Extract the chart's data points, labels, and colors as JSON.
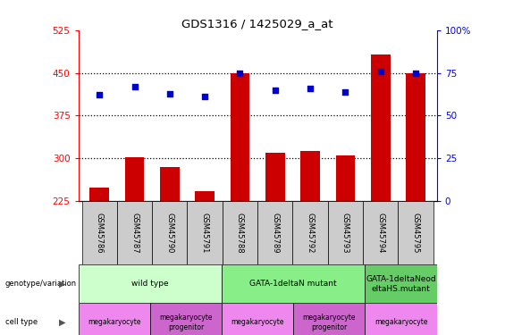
{
  "title": "GDS1316 / 1425029_a_at",
  "samples": [
    "GSM45786",
    "GSM45787",
    "GSM45790",
    "GSM45791",
    "GSM45788",
    "GSM45789",
    "GSM45792",
    "GSM45793",
    "GSM45794",
    "GSM45795"
  ],
  "counts": [
    248,
    302,
    284,
    243,
    449,
    309,
    313,
    305,
    482,
    449
  ],
  "percentile": [
    62,
    67,
    63,
    61,
    75,
    65,
    66,
    64,
    76,
    75
  ],
  "ylim_left": [
    225,
    525
  ],
  "ylim_right": [
    0,
    100
  ],
  "yticks_left": [
    225,
    300,
    375,
    450,
    525
  ],
  "yticks_right": [
    0,
    25,
    50,
    75,
    100
  ],
  "bar_color": "#cc0000",
  "dot_color": "#0000cc",
  "genotype_groups": [
    {
      "label": "wild type",
      "start": 0,
      "end": 4,
      "color": "#ccffcc"
    },
    {
      "label": "GATA-1deltaN mutant",
      "start": 4,
      "end": 8,
      "color": "#88ee88"
    },
    {
      "label": "GATA-1deltaNeod\neltaHS.mutant",
      "start": 8,
      "end": 10,
      "color": "#66cc66"
    }
  ],
  "cell_type_groups": [
    {
      "label": "megakaryocyte",
      "start": 0,
      "end": 2,
      "color": "#ee88ee"
    },
    {
      "label": "megakaryocyte\nprogenitor",
      "start": 2,
      "end": 4,
      "color": "#cc66cc"
    },
    {
      "label": "megakaryocyte",
      "start": 4,
      "end": 6,
      "color": "#ee88ee"
    },
    {
      "label": "megakaryocyte\nprogenitor",
      "start": 6,
      "end": 8,
      "color": "#cc66cc"
    },
    {
      "label": "megakaryocyte",
      "start": 8,
      "end": 10,
      "color": "#ee88ee"
    }
  ],
  "sample_box_color": "#cccccc",
  "bg_color": "#ffffff"
}
